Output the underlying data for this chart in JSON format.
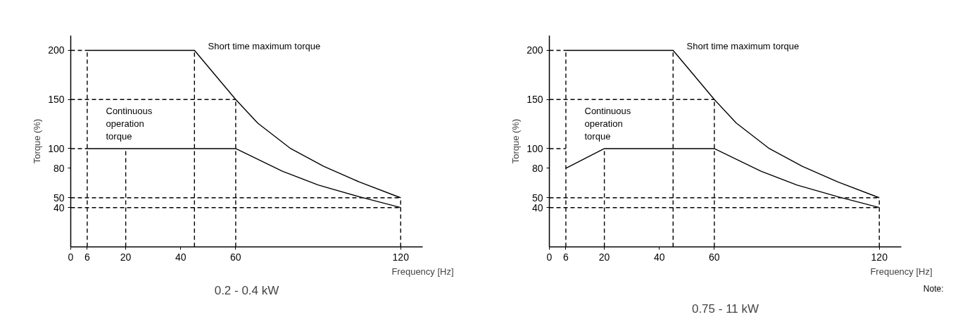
{
  "chart_data": [
    {
      "type": "line",
      "title": "0.2 - 0.4 kW",
      "xlabel": "Frequency [Hz]",
      "ylabel": "Torque (%)",
      "xlim": [
        0,
        128
      ],
      "ylim": [
        0,
        215
      ],
      "xticks": [
        0,
        6,
        20,
        40,
        60,
        120
      ],
      "yticks": [
        40,
        50,
        80,
        100,
        150,
        200
      ],
      "grid": false,
      "series": [
        {
          "color": "#000000",
          "line_style": "solid",
          "x": [
            6,
            45,
            60,
            68,
            80,
            92,
            105,
            120
          ],
          "values": [
            200,
            200,
            150,
            126,
            100,
            82,
            66,
            50
          ]
        },
        {
          "color": "#000000",
          "line_style": "solid",
          "x": [
            6,
            60,
            77,
            90,
            105,
            120
          ],
          "values": [
            100,
            100,
            77,
            63,
            51,
            40
          ]
        },
        {
          "color": "#000000",
          "line_style": "dashed",
          "x": [
            6,
            6
          ],
          "values": [
            0,
            200
          ]
        },
        {
          "color": "#000000",
          "line_style": "dashed",
          "x": [
            20,
            20
          ],
          "values": [
            0,
            100
          ]
        },
        {
          "color": "#000000",
          "line_style": "dashed",
          "x": [
            45,
            45
          ],
          "values": [
            0,
            200
          ]
        },
        {
          "color": "#000000",
          "line_style": "dashed",
          "x": [
            60,
            60
          ],
          "values": [
            0,
            150
          ]
        },
        {
          "color": "#000000",
          "line_style": "dashed",
          "x": [
            120,
            120
          ],
          "values": [
            0,
            50
          ]
        },
        {
          "color": "#000000",
          "line_style": "dashed",
          "x": [
            0,
            6
          ],
          "values": [
            200,
            200
          ]
        },
        {
          "color": "#000000",
          "line_style": "dashed",
          "x": [
            0,
            60
          ],
          "values": [
            150,
            150
          ]
        },
        {
          "color": "#000000",
          "line_style": "dashed",
          "x": [
            0,
            6
          ],
          "values": [
            100,
            100
          ]
        },
        {
          "color": "#000000",
          "line_style": "dashed",
          "x": [
            0,
            120
          ],
          "values": [
            50,
            50
          ]
        },
        {
          "color": "#000000",
          "line_style": "dashed",
          "x": [
            0,
            120
          ],
          "values": [
            40,
            40
          ]
        }
      ],
      "annotations": [
        "Short time maximum torque",
        "Continuous\noperation\ntorque"
      ]
    },
    {
      "type": "line",
      "title": "0.75 - 11 kW",
      "xlabel": "Frequency [Hz]",
      "ylabel": "Torque (%)",
      "xlim": [
        0,
        128
      ],
      "ylim": [
        0,
        215
      ],
      "xticks": [
        0,
        6,
        20,
        40,
        60,
        120
      ],
      "yticks": [
        40,
        50,
        80,
        100,
        150,
        200
      ],
      "grid": false,
      "series": [
        {
          "color": "#000000",
          "line_style": "solid",
          "x": [
            6,
            45,
            60,
            68,
            80,
            92,
            105,
            120
          ],
          "values": [
            200,
            200,
            150,
            126,
            100,
            82,
            66,
            50
          ]
        },
        {
          "color": "#000000",
          "line_style": "solid",
          "x": [
            6,
            20,
            60,
            77,
            90,
            105,
            120
          ],
          "values": [
            80,
            100,
            100,
            77,
            63,
            51,
            40
          ]
        },
        {
          "color": "#000000",
          "line_style": "dashed",
          "x": [
            6,
            6
          ],
          "values": [
            0,
            200
          ]
        },
        {
          "color": "#000000",
          "line_style": "dashed",
          "x": [
            20,
            20
          ],
          "values": [
            0,
            100
          ]
        },
        {
          "color": "#000000",
          "line_style": "dashed",
          "x": [
            45,
            45
          ],
          "values": [
            0,
            200
          ]
        },
        {
          "color": "#000000",
          "line_style": "dashed",
          "x": [
            60,
            60
          ],
          "values": [
            0,
            150
          ]
        },
        {
          "color": "#000000",
          "line_style": "dashed",
          "x": [
            120,
            120
          ],
          "values": [
            0,
            50
          ]
        },
        {
          "color": "#000000",
          "line_style": "dashed",
          "x": [
            0,
            6
          ],
          "values": [
            200,
            200
          ]
        },
        {
          "color": "#000000",
          "line_style": "dashed",
          "x": [
            0,
            60
          ],
          "values": [
            150,
            150
          ]
        },
        {
          "color": "#000000",
          "line_style": "dashed",
          "x": [
            0,
            6
          ],
          "values": [
            100,
            100
          ]
        },
        {
          "color": "#000000",
          "line_style": "dashed",
          "x": [
            0,
            120
          ],
          "values": [
            50,
            50
          ]
        },
        {
          "color": "#000000",
          "line_style": "dashed",
          "x": [
            0,
            120
          ],
          "values": [
            40,
            40
          ]
        }
      ],
      "annotations": [
        "Short time maximum torque",
        "Continuous\noperation\ntorque",
        "Note:"
      ]
    }
  ]
}
